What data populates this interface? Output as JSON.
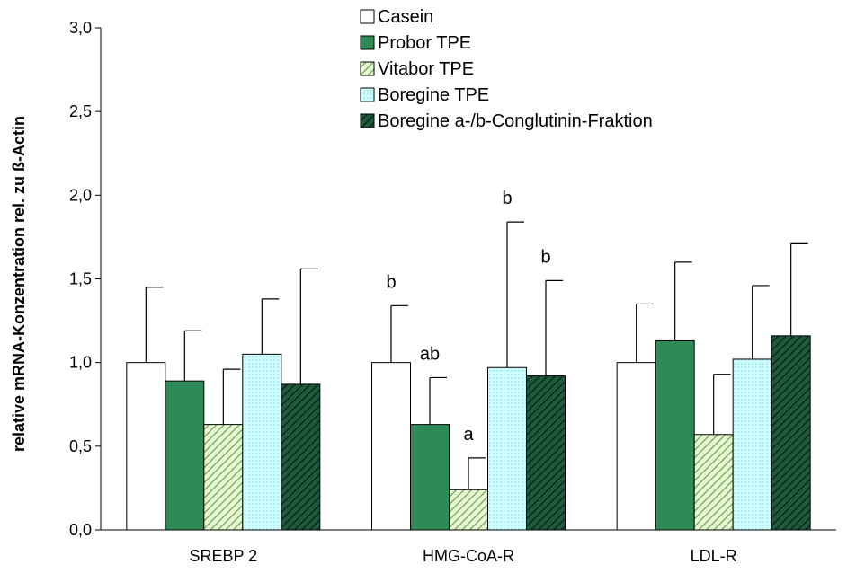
{
  "chart_data": {
    "type": "bar",
    "title": "",
    "xlabel": "",
    "ylabel": "relative mRNA-Konzentration rel. zu ß-Actin",
    "ylim": [
      0,
      3.0
    ],
    "yticks": [
      "0,0",
      "0,5",
      "1,0",
      "1,5",
      "2,0",
      "2,5",
      "3,0"
    ],
    "categories": [
      "SREBP 2",
      "HMG-CoA-R",
      "LDL-R"
    ],
    "grid": false,
    "legend_position": "top",
    "series": [
      {
        "name": "Casein",
        "values": [
          1.0,
          1.0,
          1.0
        ],
        "errors": [
          0.45,
          0.34,
          0.35
        ],
        "labels": [
          "",
          "b",
          ""
        ],
        "fill": "#ffffff",
        "pattern": "none"
      },
      {
        "name": "Probor TPE",
        "values": [
          0.89,
          0.63,
          1.13
        ],
        "errors": [
          0.3,
          0.28,
          0.47
        ],
        "labels": [
          "",
          "ab",
          ""
        ],
        "fill": "#2e8b57",
        "pattern": "none"
      },
      {
        "name": "Vitabor TPE",
        "values": [
          0.63,
          0.24,
          0.57
        ],
        "errors": [
          0.33,
          0.19,
          0.36
        ],
        "labels": [
          "",
          "a",
          ""
        ],
        "fill": "#d8efb8",
        "pattern": "diag-light"
      },
      {
        "name": "Boregine TPE",
        "values": [
          1.05,
          0.97,
          1.02
        ],
        "errors": [
          0.33,
          0.87,
          0.44
        ],
        "labels": [
          "",
          "b",
          ""
        ],
        "fill": "#ccffff",
        "pattern": "dots"
      },
      {
        "name": "Boregine a-/b-Conglutinin-Fraktion",
        "values": [
          0.87,
          0.92,
          1.16
        ],
        "errors": [
          0.69,
          0.57,
          0.55
        ],
        "labels": [
          "",
          "b",
          ""
        ],
        "fill": "#1b4d35",
        "pattern": "diag-dark"
      }
    ]
  },
  "colors": {
    "axis": "#000000",
    "bar_stroke": "#000000"
  }
}
